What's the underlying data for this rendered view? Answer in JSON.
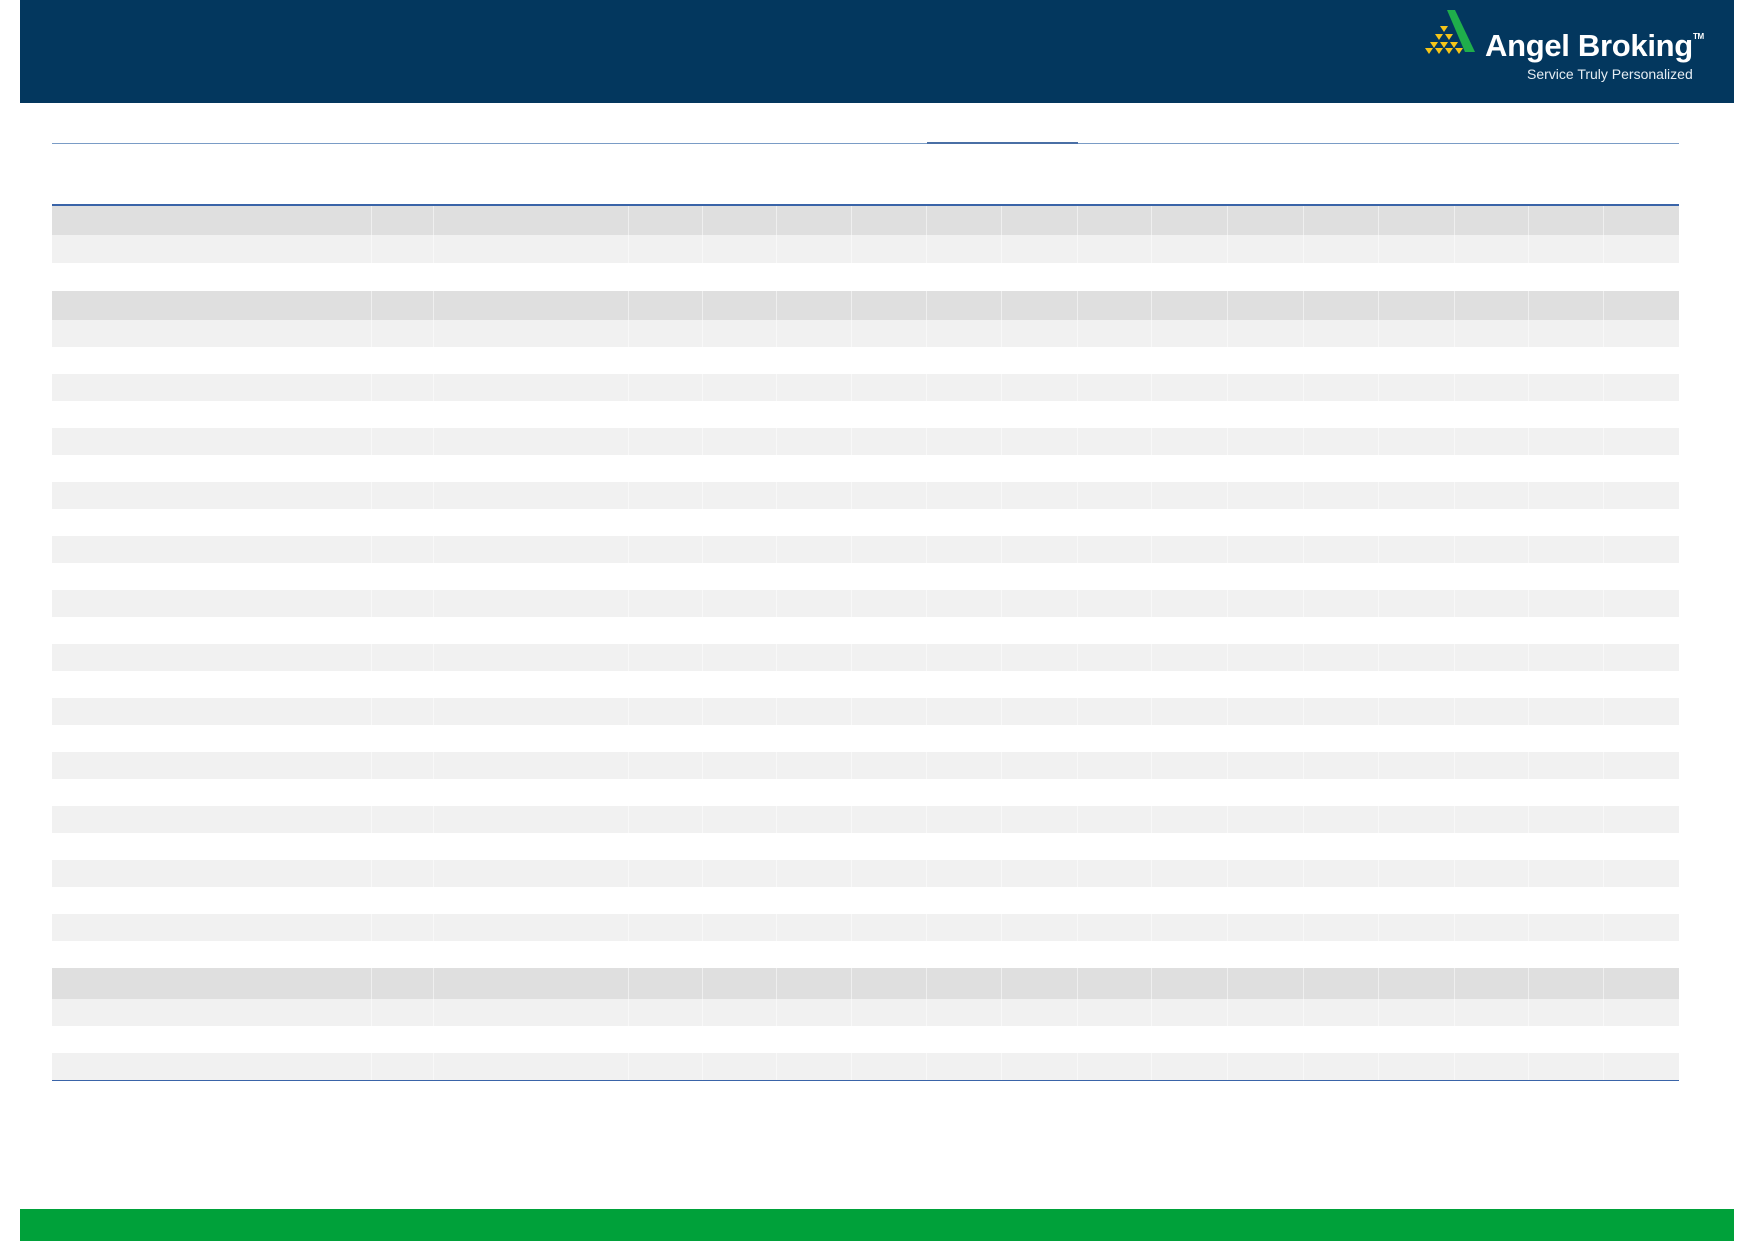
{
  "header": {
    "brand_name": "Angel Broking",
    "trademark": "TM",
    "tagline": "Service Truly Personalized",
    "background_color": "#03375e"
  },
  "footer": {
    "background_color": "#00a13a"
  },
  "table": {
    "column_count": 17,
    "row_styles": [
      "dark",
      "light",
      "white",
      "dark",
      "light",
      "white",
      "light",
      "white",
      "light",
      "white",
      "light",
      "white",
      "light",
      "white",
      "light",
      "white",
      "light",
      "white",
      "light",
      "white",
      "light",
      "white",
      "light",
      "white",
      "light",
      "white",
      "light",
      "white",
      "dark",
      "light",
      "white",
      "light"
    ],
    "colors": {
      "dark": "#dfdfdf",
      "light": "#f1f1f1",
      "rule": "#3a64a8"
    }
  }
}
